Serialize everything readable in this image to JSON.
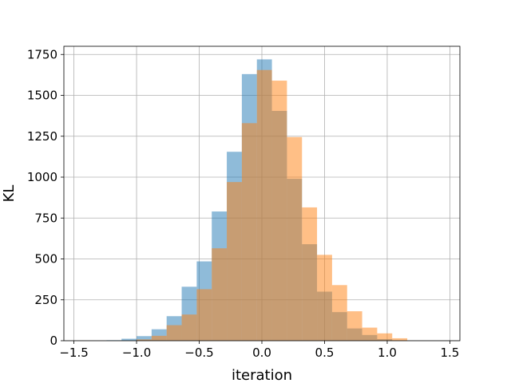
{
  "chart_data": {
    "type": "histogram",
    "title": "",
    "xlabel": "iteration",
    "ylabel": "KL",
    "xlim": [
      -1.58,
      1.58
    ],
    "ylim": [
      0,
      1800
    ],
    "xticks": [
      -1.5,
      -1.0,
      -0.5,
      0.0,
      0.5,
      1.0,
      1.5
    ],
    "xtick_labels": [
      "−1.5",
      "−1.0",
      "−0.5",
      "0.0",
      "0.5",
      "1.0",
      "1.5"
    ],
    "yticks": [
      0,
      250,
      500,
      750,
      1000,
      1250,
      1500,
      1750
    ],
    "ytick_labels": [
      "0",
      "250",
      "500",
      "750",
      "1000",
      "1250",
      "1500",
      "1750"
    ],
    "grid": true,
    "legend": "none",
    "series": [
      {
        "color": "#1f77b4",
        "alpha": 0.5,
        "bin_edges": [
          -1.24,
          -1.12,
          -1.0,
          -0.88,
          -0.76,
          -0.64,
          -0.52,
          -0.4,
          -0.28,
          -0.16,
          -0.04,
          0.08,
          0.2,
          0.32,
          0.44,
          0.56,
          0.68,
          0.8,
          0.92,
          1.04
        ],
        "counts": [
          3,
          12,
          28,
          70,
          150,
          330,
          485,
          790,
          1155,
          1630,
          1720,
          1405,
          990,
          590,
          300,
          175,
          75,
          35,
          10
        ]
      },
      {
        "color": "#ff7f0e",
        "alpha": 0.5,
        "bin_edges": [
          -1.0,
          -0.88,
          -0.76,
          -0.64,
          -0.52,
          -0.4,
          -0.28,
          -0.16,
          -0.04,
          0.08,
          0.2,
          0.32,
          0.44,
          0.56,
          0.68,
          0.8,
          0.92,
          1.04,
          1.16
        ],
        "counts": [
          8,
          30,
          95,
          160,
          315,
          565,
          970,
          1330,
          1655,
          1590,
          1245,
          815,
          525,
          340,
          180,
          80,
          45,
          15
        ]
      }
    ]
  }
}
